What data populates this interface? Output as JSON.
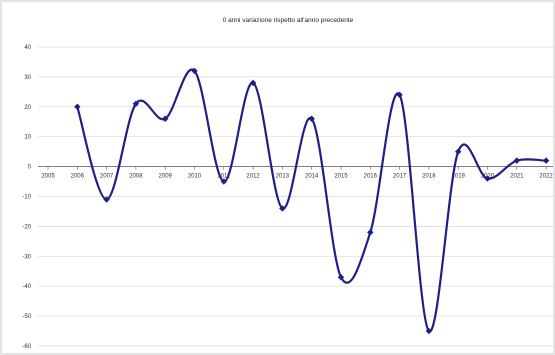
{
  "chart_data": {
    "type": "line",
    "title": "0 anni variazione rispetto all'anno precedente",
    "xlabel": "",
    "ylabel": "",
    "x_ticks": [
      "2005",
      "2006",
      "2007",
      "2008",
      "2009",
      "2010",
      "2011",
      "2012",
      "2013",
      "2014",
      "2015",
      "2016",
      "2017",
      "2018",
      "2019",
      "2020",
      "2021",
      "2022"
    ],
    "y_ticks": [
      40,
      30,
      20,
      10,
      0,
      -10,
      -20,
      -30,
      -40,
      -50,
      -60
    ],
    "ylim": [
      -60,
      40
    ],
    "grid": "horizontal",
    "legend": "none",
    "series": [
      {
        "color": "#1f1f8a",
        "smoothed": true,
        "marker": "diamond",
        "x": [
          "2006",
          "2007",
          "2008",
          "2009",
          "2010",
          "2011",
          "2012",
          "2013",
          "2014",
          "2015",
          "2016",
          "2017",
          "2018",
          "2019",
          "2020",
          "2021",
          "2022"
        ],
        "values": [
          20,
          -11,
          21,
          16,
          32,
          -5,
          28,
          -14,
          16,
          -37,
          -22,
          24,
          -55,
          5,
          -4,
          2,
          2
        ]
      }
    ]
  }
}
